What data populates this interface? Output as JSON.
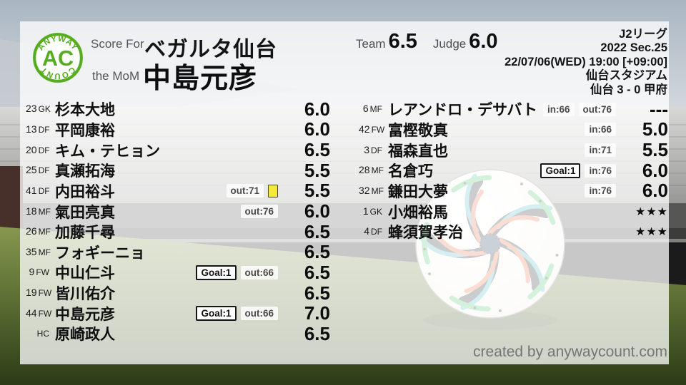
{
  "brand": {
    "logo_top": "ANYWAY",
    "logo_center": "AC",
    "logo_bottom": "COUNT",
    "accent_green": "#57ad20"
  },
  "header": {
    "score_for_label": "Score For",
    "team_name": "ベガルタ仙台",
    "mom_label": "the MoM",
    "mom_name": "中島元彦",
    "team_label": "Team",
    "team_score": "6.5",
    "judge_label": "Judge",
    "judge_score": "6.0"
  },
  "match": {
    "league": "J2リーグ",
    "season_round": "2022 Sec.25",
    "kickoff": "22/07/06(WED) 19:00 [+09:00]",
    "venue": "仙台スタジアム",
    "result": "仙台 3 - 0 甲府"
  },
  "theme": {
    "overlay": "rgba(255,255,255,0.76)",
    "card_yellow": "#f3ea3d",
    "badge_goal_border": "#151515",
    "badge_sub_bg": "#fcfcfc",
    "text_dark": "#0e0e0e",
    "text_gray": "#555555"
  },
  "left_players": [
    {
      "num": "23",
      "pos": "GK",
      "name": "杉本大地",
      "badges": [],
      "rating": "6.0"
    },
    {
      "num": "13",
      "pos": "DF",
      "name": "平岡康裕",
      "badges": [],
      "rating": "6.0"
    },
    {
      "num": "20",
      "pos": "DF",
      "name": "キム・テヒョン",
      "badges": [],
      "rating": "6.5"
    },
    {
      "num": "25",
      "pos": "DF",
      "name": "真瀬拓海",
      "badges": [],
      "rating": "5.5"
    },
    {
      "num": "41",
      "pos": "DF",
      "name": "内田裕斗",
      "badges": [
        {
          "kind": "sub",
          "label": "out:71"
        },
        {
          "kind": "card",
          "label": ""
        }
      ],
      "rating": "5.5"
    },
    {
      "num": "18",
      "pos": "MF",
      "name": "氣田亮真",
      "badges": [
        {
          "kind": "sub",
          "label": "out:76"
        }
      ],
      "rating": "6.0"
    },
    {
      "num": "26",
      "pos": "MF",
      "name": "加藤千尋",
      "badges": [],
      "rating": "6.5"
    },
    {
      "num": "35",
      "pos": "MF",
      "name": "フォギーニョ",
      "badges": [],
      "rating": "6.5"
    },
    {
      "num": "9",
      "pos": "FW",
      "name": "中山仁斗",
      "badges": [
        {
          "kind": "goal",
          "label": "Goal:1"
        },
        {
          "kind": "sub",
          "label": "out:66"
        }
      ],
      "rating": "6.5"
    },
    {
      "num": "19",
      "pos": "FW",
      "name": "皆川佑介",
      "badges": [],
      "rating": "6.5"
    },
    {
      "num": "44",
      "pos": "FW",
      "name": "中島元彦",
      "badges": [
        {
          "kind": "goal",
          "label": "Goal:1"
        },
        {
          "kind": "sub",
          "label": "out:66"
        }
      ],
      "rating": "7.0"
    },
    {
      "num": "",
      "pos": "HC",
      "name": "原崎政人",
      "badges": [],
      "rating": "6.5"
    }
  ],
  "right_players": [
    {
      "num": "6",
      "pos": "MF",
      "name": "レアンドロ・デサバト",
      "badges": [
        {
          "kind": "sub",
          "label": "in:66"
        },
        {
          "kind": "sub",
          "label": "out:76"
        }
      ],
      "rating": "---"
    },
    {
      "num": "42",
      "pos": "FW",
      "name": "富樫敬真",
      "badges": [
        {
          "kind": "sub",
          "label": "in:66"
        }
      ],
      "rating": "5.0"
    },
    {
      "num": "3",
      "pos": "DF",
      "name": "福森直也",
      "badges": [
        {
          "kind": "sub",
          "label": "in:71"
        }
      ],
      "rating": "5.5"
    },
    {
      "num": "28",
      "pos": "MF",
      "name": "名倉巧",
      "badges": [
        {
          "kind": "goal",
          "label": "Goal:1"
        },
        {
          "kind": "sub",
          "label": "in:76"
        }
      ],
      "rating": "6.0"
    },
    {
      "num": "32",
      "pos": "MF",
      "name": "鎌田大夢",
      "badges": [
        {
          "kind": "sub",
          "label": "in:76"
        }
      ],
      "rating": "6.0"
    },
    {
      "num": "1",
      "pos": "GK",
      "name": "小畑裕馬",
      "badges": [],
      "rating": "★★★"
    },
    {
      "num": "4",
      "pos": "DF",
      "name": "蜂須賀孝治",
      "badges": [],
      "rating": "★★★"
    }
  ],
  "footer": {
    "credit": "created by anywaycount.com"
  }
}
